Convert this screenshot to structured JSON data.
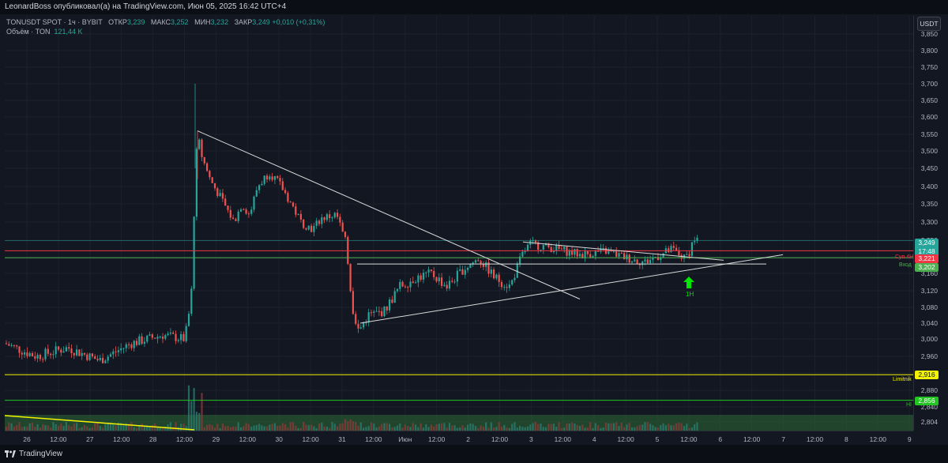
{
  "header": {
    "published": "LeonardBoss опубликовал(а) на TradingView.com, Июн 05, 2025 16:42 UTC+4"
  },
  "legend": {
    "symbol": "TONUSDT SPOT · 1ч · BYBIT",
    "open_label": "ОТКР",
    "open": "3,239",
    "high_label": "МАКС",
    "high": "3,252",
    "low_label": "МИН",
    "low": "3,232",
    "close_label": "ЗАКР",
    "close": "3,249",
    "change": "+0,010 (+0,31%)",
    "volume_label": "Объём · TON",
    "volume_value": "121,44 K"
  },
  "price_axis": {
    "currency": "USDT",
    "ticks": [
      "3,850",
      "3,800",
      "3,750",
      "3,700",
      "3,650",
      "3,600",
      "3,550",
      "3,500",
      "3,450",
      "3,400",
      "3,350",
      "3,300",
      "3,250",
      "3,200",
      "3,160",
      "3,120",
      "3,080",
      "3,040",
      "3,000",
      "2,960",
      "2,920",
      "2,880",
      "2,840",
      "2,804"
    ]
  },
  "time_axis": {
    "ticks": [
      "26",
      "12:00",
      "27",
      "12:00",
      "28",
      "12:00",
      "29",
      "12:00",
      "30",
      "12:00",
      "31",
      "12:00",
      "Июн",
      "12:00",
      "2",
      "12:00",
      "3",
      "12:00",
      "4",
      "12:00",
      "5",
      "12:00",
      "6",
      "12:00",
      "7",
      "12:00",
      "8",
      "12:00",
      "9"
    ]
  },
  "levels": {
    "current_price": "3,249",
    "countdown": "17:48",
    "sup4h_name": "Суп 4Н",
    "sup4h_price": "3,221",
    "entry_name": "Вход",
    "entry_price": "3,202",
    "limitnik_name": "Limitnik",
    "limitnik_price": "2,916",
    "hi_name": "HI",
    "hi_price": "2,856"
  },
  "annotation": {
    "arrow_label": "1H"
  },
  "colors": {
    "background": "#131722",
    "up": "#26a69a",
    "down": "#ef5350",
    "limitnik": "#f2f200",
    "hi": "#22c322",
    "entry": "#4caf50",
    "sup": "#f23645",
    "arrow": "#00e600"
  },
  "footer": {
    "brand": "TradingView"
  }
}
